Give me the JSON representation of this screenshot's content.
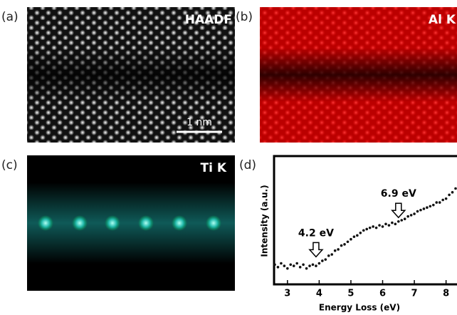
{
  "panels": [
    {
      "label": "(a)",
      "title": "HAADF",
      "scale_bar": "1 nm"
    },
    {
      "label": "(b)",
      "title": "Al K"
    },
    {
      "label": "(c)",
      "title": "Ti K"
    }
  ],
  "chart_data": {
    "type": "scatter",
    "panel_label": "(d)",
    "x_label": "Energy Loss (eV)",
    "y_label": "Intensity (a.u.)",
    "xlim": [
      2.6,
      8.3
    ],
    "ylim": [
      0,
      1
    ],
    "xticks": [
      3,
      4,
      5,
      6,
      7,
      8
    ],
    "x": [
      2.6,
      2.7,
      2.8,
      2.9,
      3.0,
      3.1,
      3.2,
      3.3,
      3.4,
      3.5,
      3.6,
      3.7,
      3.8,
      3.9,
      4.0,
      4.1,
      4.2,
      4.3,
      4.4,
      4.5,
      4.6,
      4.7,
      4.8,
      4.9,
      5.0,
      5.1,
      5.2,
      5.3,
      5.4,
      5.5,
      5.6,
      5.7,
      5.8,
      5.9,
      6.0,
      6.1,
      6.2,
      6.3,
      6.4,
      6.5,
      6.6,
      6.7,
      6.8,
      6.9,
      7.0,
      7.1,
      7.2,
      7.3,
      7.4,
      7.5,
      7.6,
      7.7,
      7.8,
      7.9,
      8.0,
      8.1,
      8.2,
      8.3
    ],
    "series": [
      {
        "color": "#111111",
        "values": [
          0.15,
          0.13,
          0.16,
          0.14,
          0.12,
          0.15,
          0.14,
          0.16,
          0.13,
          0.15,
          0.12,
          0.14,
          0.15,
          0.14,
          0.16,
          0.18,
          0.19,
          0.22,
          0.23,
          0.26,
          0.27,
          0.3,
          0.31,
          0.33,
          0.35,
          0.37,
          0.38,
          0.4,
          0.42,
          0.43,
          0.44,
          0.45,
          0.44,
          0.46,
          0.45,
          0.47,
          0.46,
          0.48,
          0.47,
          0.49,
          0.5,
          0.51,
          0.53,
          0.54,
          0.55,
          0.57,
          0.58,
          0.59,
          0.6,
          0.61,
          0.62,
          0.64,
          0.64,
          0.66,
          0.67,
          0.7,
          0.72,
          0.75
        ]
      }
    ],
    "annotations": [
      {
        "text": "4.2 eV",
        "x": 3.9,
        "y": 0.2
      },
      {
        "text": "6.9 eV",
        "x": 6.5,
        "y": 0.51
      }
    ]
  }
}
